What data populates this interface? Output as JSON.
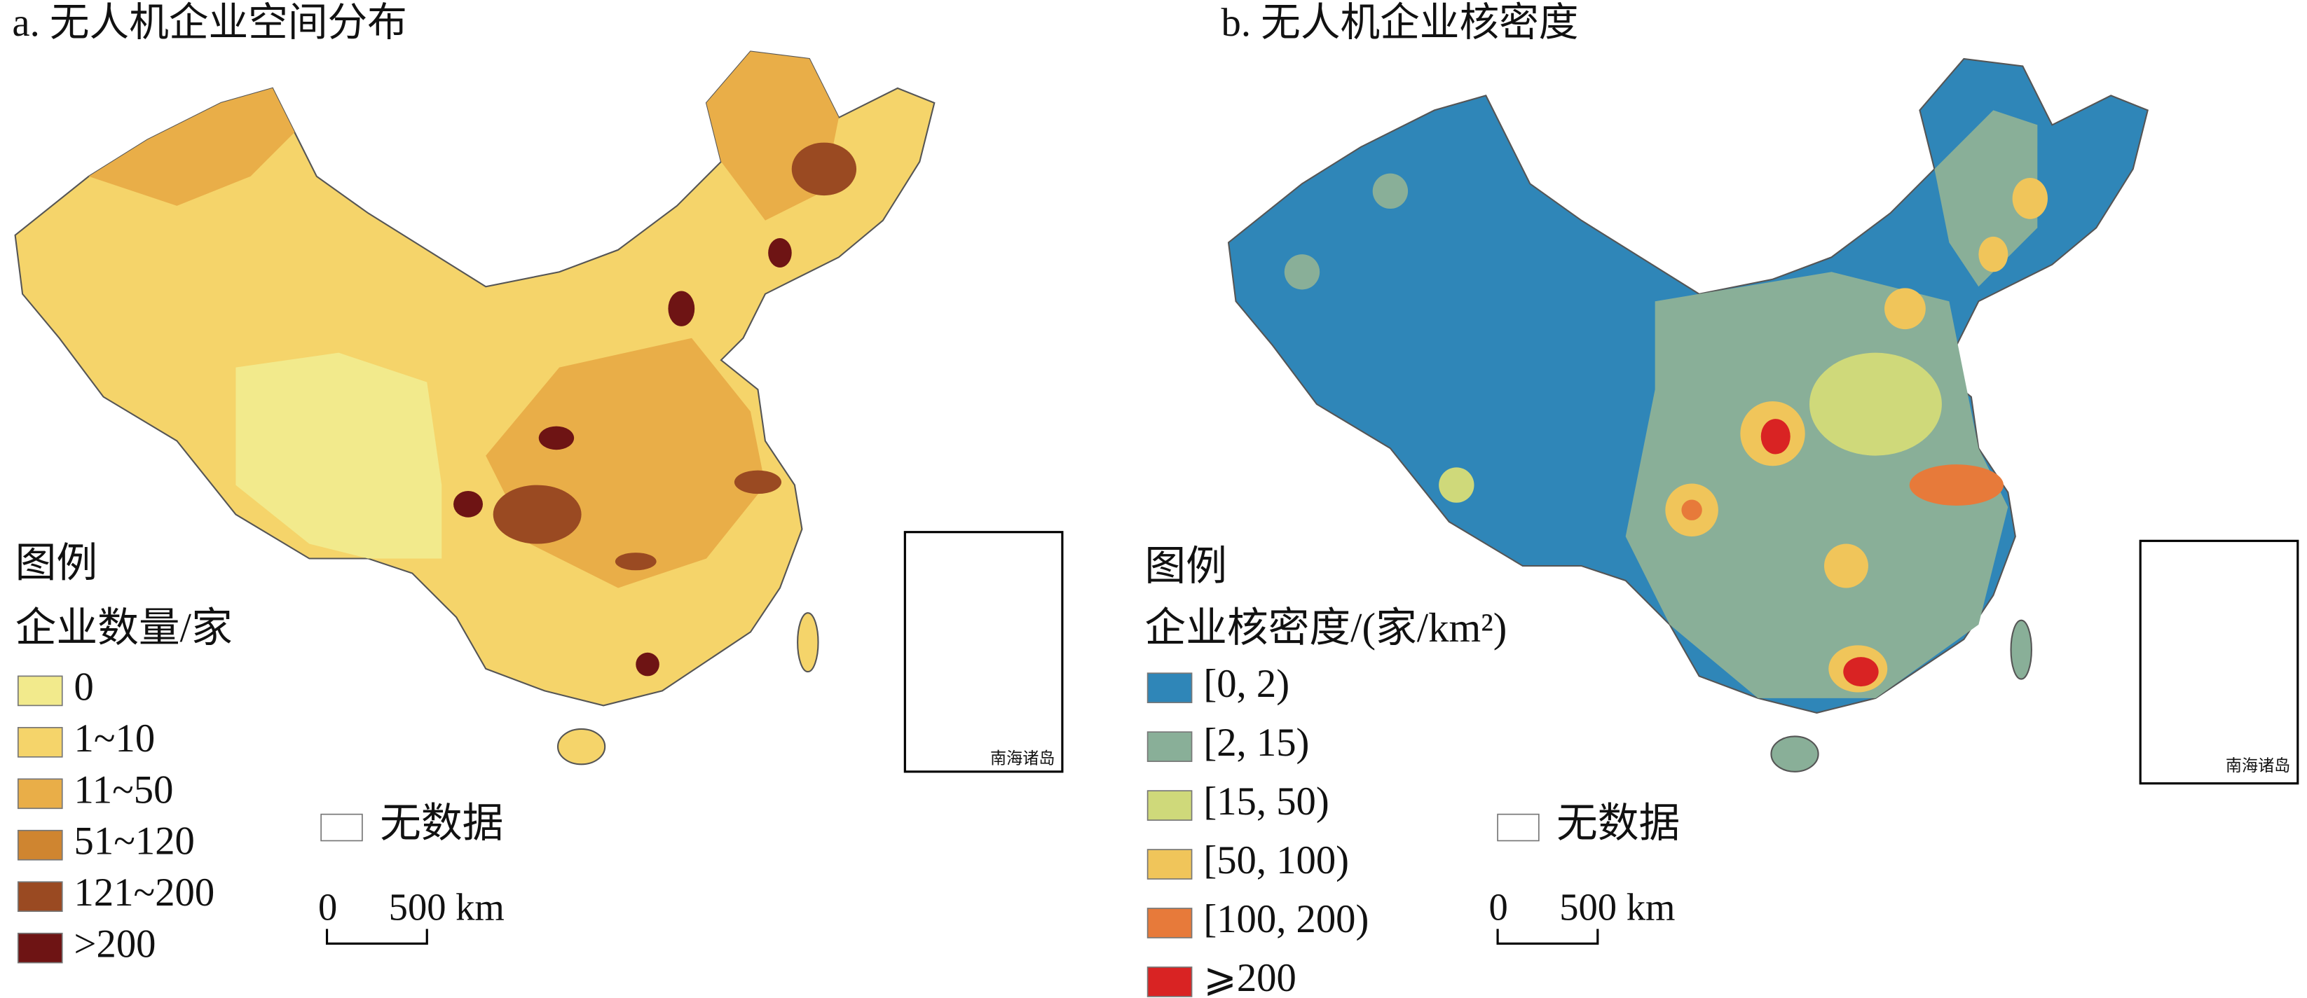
{
  "panels": [
    {
      "title": "a. 无人机企业空间分布",
      "legend": {
        "heading": "图例",
        "title": "企业数量/家",
        "items": [
          {
            "label": "0",
            "color": "#f2ea8c"
          },
          {
            "label": "1~10",
            "color": "#f5d46a"
          },
          {
            "label": "11~50",
            "color": "#e9ae48"
          },
          {
            "label": "51~120",
            "color": "#cf8530"
          },
          {
            "label": "121~200",
            "color": "#9a4a22"
          },
          {
            "label": ">200",
            "color": "#6e1414"
          }
        ],
        "no_data": "无数据"
      },
      "scale": {
        "start": "0",
        "end": "500 km"
      },
      "inset": "南海诸岛"
    },
    {
      "title": "b. 无人机企业核密度",
      "legend": {
        "heading": "图例",
        "title": "企业核密度/(家/km²)",
        "items": [
          {
            "label": "[0, 2)",
            "color": "#2f86b8"
          },
          {
            "label": "[2, 15)",
            "color": "#89af98"
          },
          {
            "label": "[15, 50)",
            "color": "#cfd97a"
          },
          {
            "label": "[50, 100)",
            "color": "#f0c55a"
          },
          {
            "label": "[100, 200)",
            "color": "#e77a3a"
          },
          {
            "label": "⩾200",
            "color": "#d92323"
          }
        ],
        "no_data": "无数据"
      },
      "scale": {
        "start": "0",
        "end": "500 km"
      },
      "inset": "南海诸岛"
    }
  ]
}
